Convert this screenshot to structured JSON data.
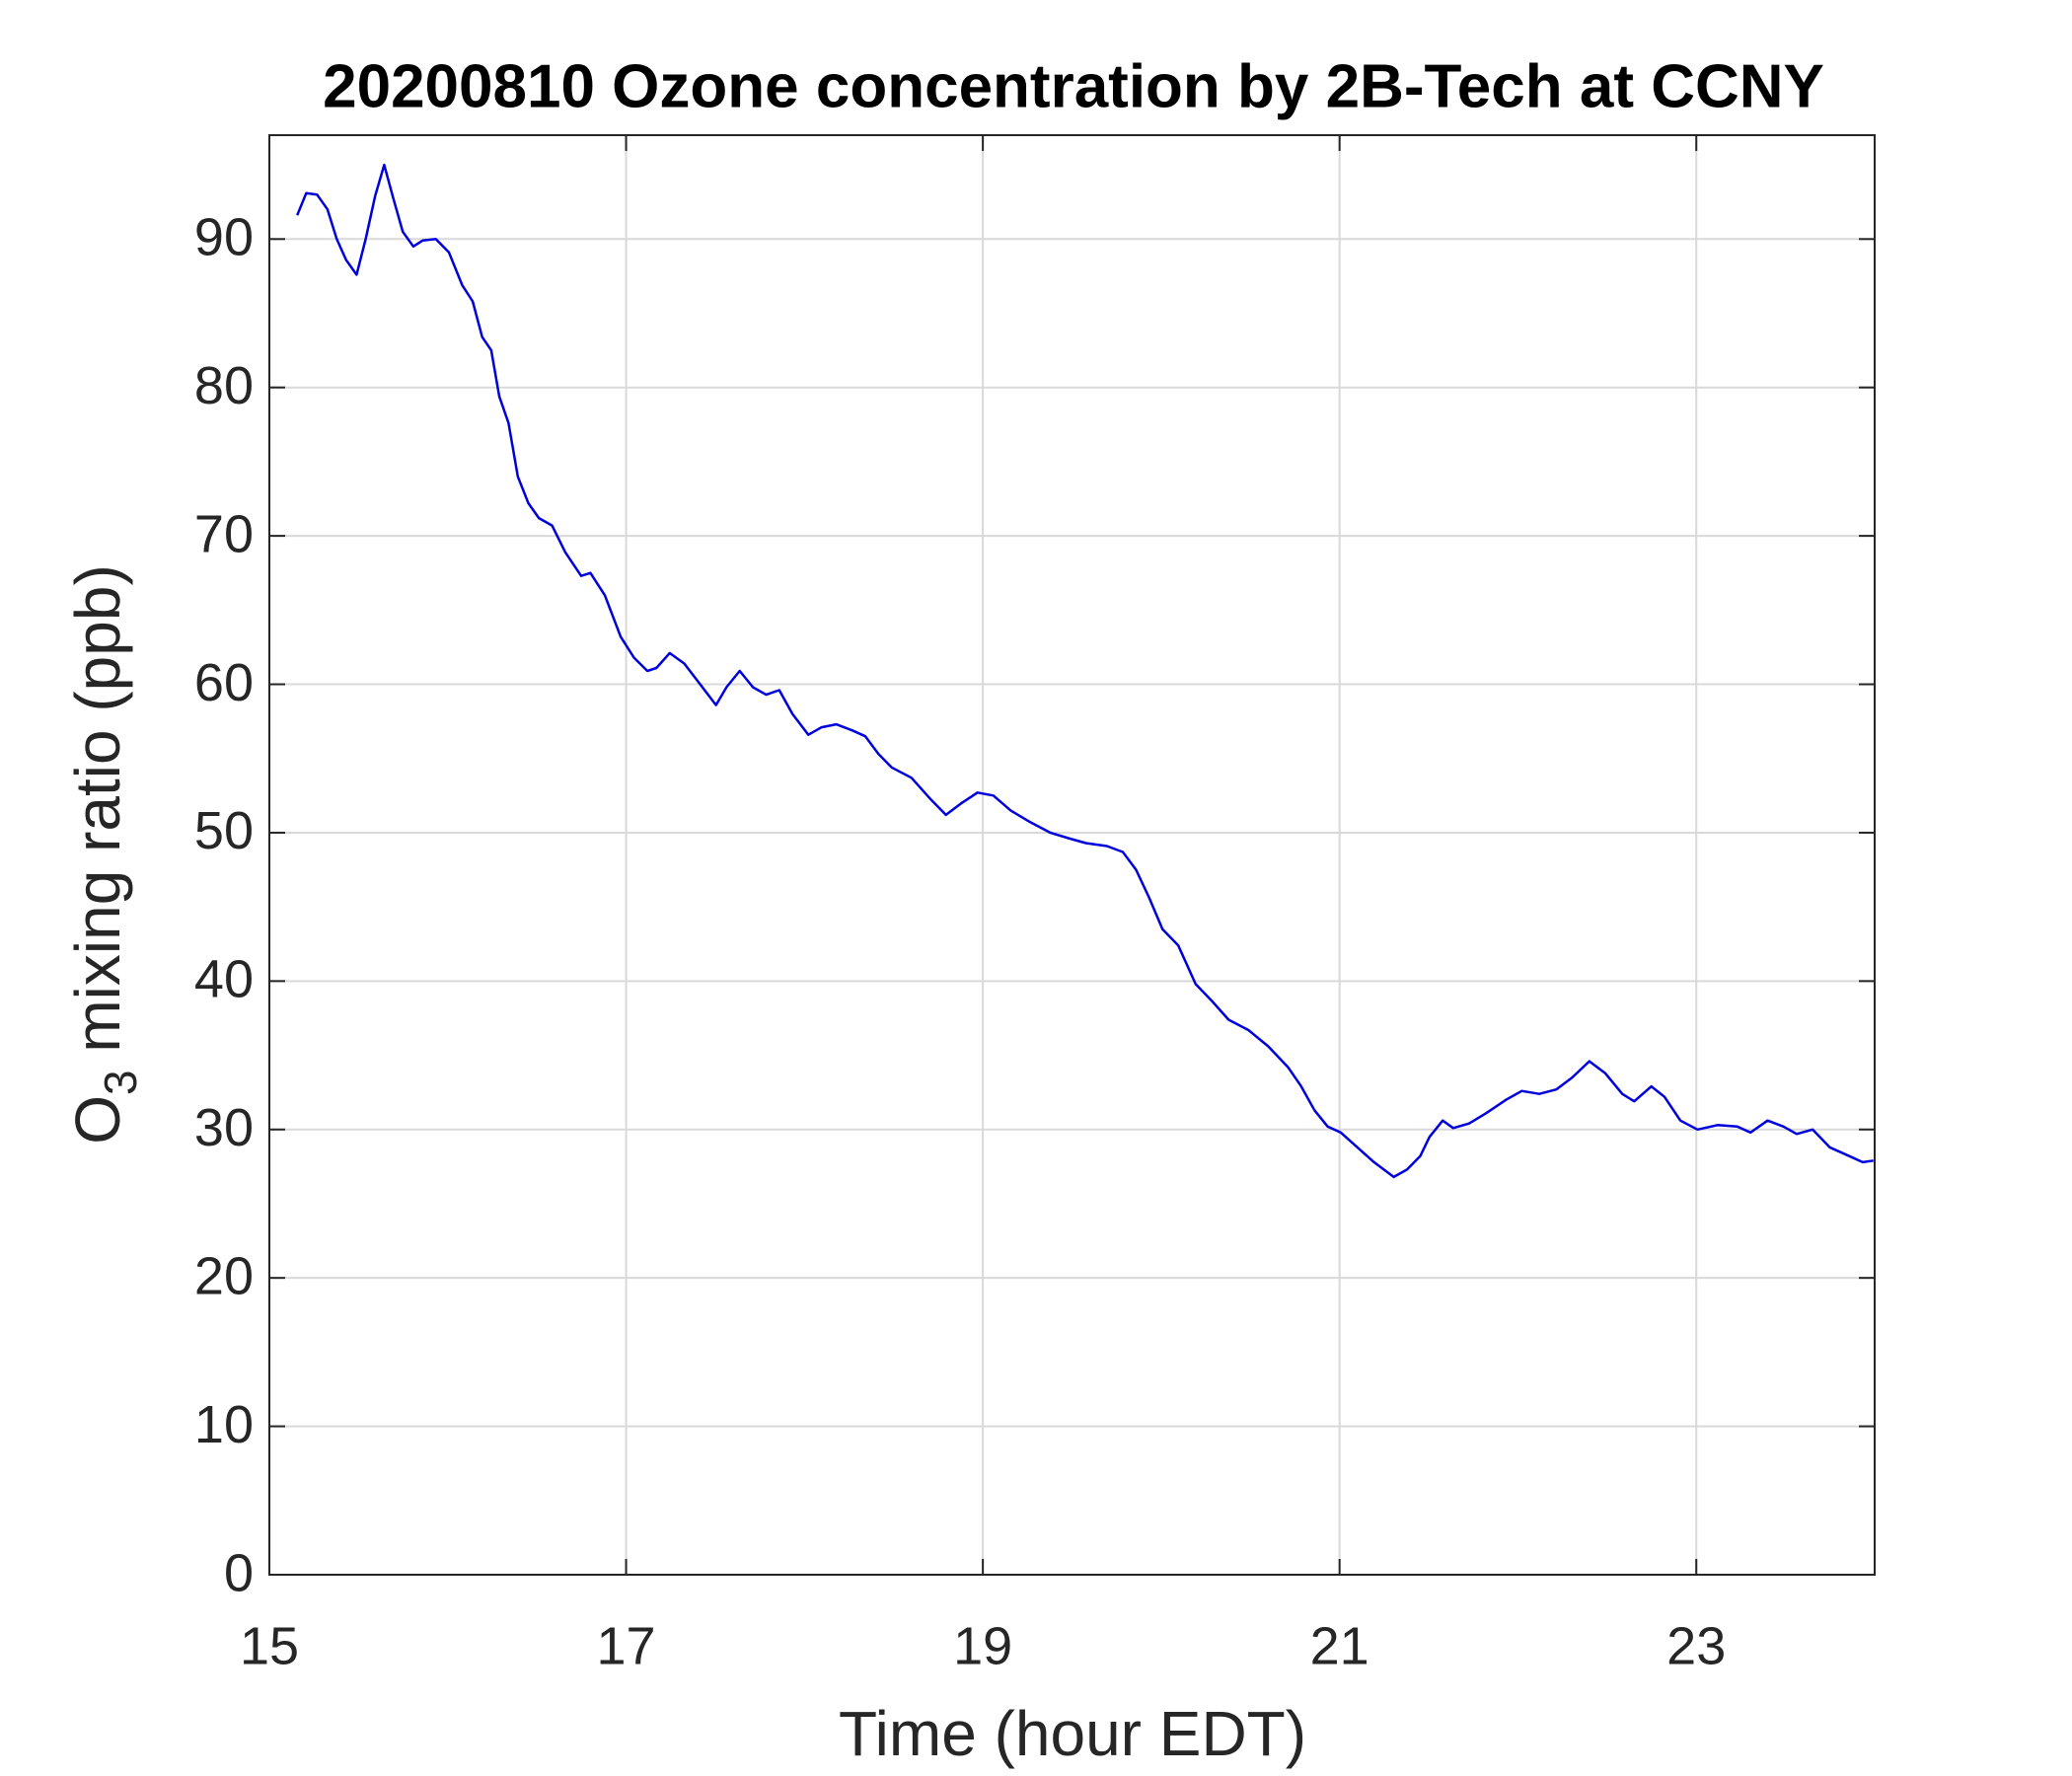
{
  "chart_data": {
    "type": "line",
    "title": "20200810 Ozone concentration by 2B-Tech at CCNY",
    "xlabel": "Time (hour EDT)",
    "ylabel": [
      "O",
      "3",
      " mixing ratio (ppb)"
    ],
    "color": "#0000dd",
    "grid": true,
    "xlim": [
      15,
      24
    ],
    "xticks": [
      15,
      17,
      19,
      21,
      23
    ],
    "ylim": [
      0,
      97
    ],
    "yticks": [
      0,
      10,
      20,
      30,
      40,
      50,
      60,
      70,
      80,
      90
    ],
    "x": [
      15.156,
      15.207,
      15.267,
      15.326,
      15.378,
      15.43,
      15.489,
      15.54,
      15.593,
      15.644,
      15.696,
      15.748,
      15.807,
      15.859,
      15.933,
      16.007,
      16.081,
      16.14,
      16.193,
      16.244,
      16.289,
      16.341,
      16.393,
      16.452,
      16.511,
      16.585,
      16.659,
      16.748,
      16.8,
      16.881,
      16.97,
      17.044,
      17.119,
      17.17,
      17.244,
      17.326,
      17.415,
      17.504,
      17.563,
      17.637,
      17.711,
      17.785,
      17.859,
      17.933,
      18.022,
      18.096,
      18.178,
      18.267,
      18.341,
      18.415,
      18.489,
      18.6,
      18.711,
      18.793,
      18.881,
      18.97,
      19.059,
      19.156,
      19.267,
      19.378,
      19.489,
      19.578,
      19.696,
      19.785,
      19.859,
      19.933,
      20.007,
      20.096,
      20.193,
      20.289,
      20.378,
      20.489,
      20.6,
      20.711,
      20.785,
      20.859,
      20.933,
      21.007,
      21.081,
      21.193,
      21.304,
      21.378,
      21.452,
      21.504,
      21.578,
      21.637,
      21.726,
      21.822,
      21.933,
      22.022,
      22.119,
      22.215,
      22.304,
      22.4,
      22.489,
      22.585,
      22.652,
      22.748,
      22.822,
      22.911,
      23.007,
      23.119,
      23.23,
      23.304,
      23.4,
      23.489,
      23.563,
      23.652,
      23.748,
      23.859,
      23.933,
      23.993
    ],
    "values": [
      91.6,
      93.1,
      93.0,
      92.0,
      90.0,
      88.6,
      87.6,
      90.0,
      92.9,
      95.0,
      92.7,
      90.5,
      89.5,
      89.9,
      90.0,
      89.1,
      86.9,
      85.8,
      83.4,
      82.5,
      79.4,
      77.6,
      74.0,
      72.2,
      71.2,
      70.7,
      68.9,
      67.3,
      67.5,
      66.0,
      63.2,
      61.8,
      60.9,
      61.1,
      62.1,
      61.4,
      60.0,
      58.6,
      59.8,
      60.9,
      59.8,
      59.3,
      59.6,
      58.0,
      56.6,
      57.1,
      57.3,
      56.9,
      56.5,
      55.3,
      54.4,
      53.7,
      52.2,
      51.2,
      52.0,
      52.7,
      52.5,
      51.5,
      50.7,
      50.0,
      49.6,
      49.3,
      49.1,
      48.7,
      47.5,
      45.6,
      43.5,
      42.4,
      39.8,
      38.6,
      37.4,
      36.7,
      35.6,
      34.2,
      32.9,
      31.3,
      30.2,
      29.8,
      29.0,
      27.8,
      26.8,
      27.3,
      28.2,
      29.5,
      30.6,
      30.1,
      30.4,
      31.1,
      32.0,
      32.6,
      32.4,
      32.7,
      33.5,
      34.6,
      33.8,
      32.4,
      31.9,
      32.9,
      32.2,
      30.6,
      30.0,
      30.3,
      30.2,
      29.8,
      30.6,
      30.2,
      29.7,
      30.0,
      28.8,
      28.2,
      27.8,
      27.9
    ]
  }
}
